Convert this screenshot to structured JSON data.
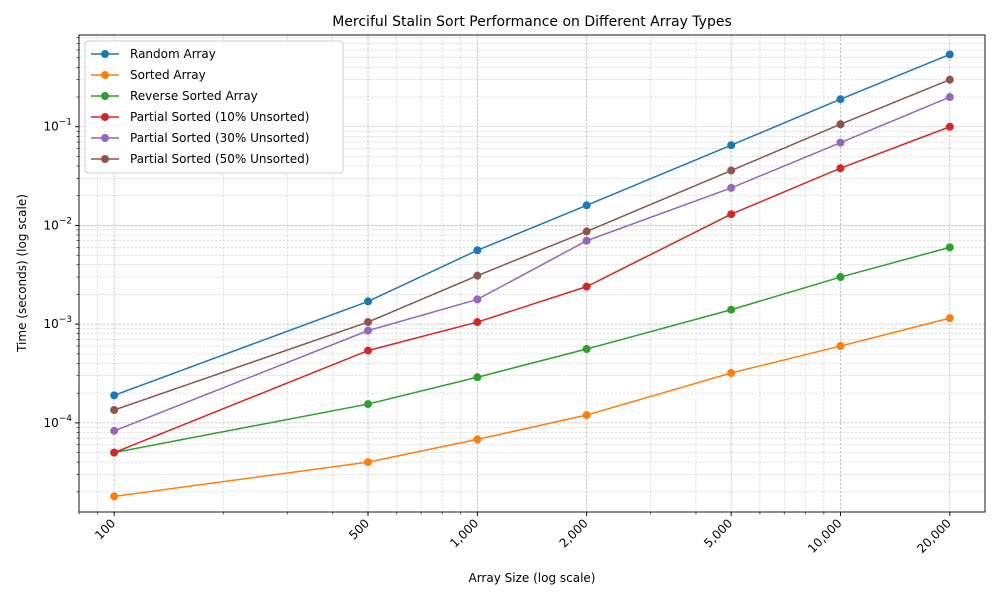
{
  "chart_data": {
    "type": "line",
    "title": "Merciful Stalin Sort Performance on Different Array Types",
    "xlabel": "Array Size (log scale)",
    "ylabel": "Time (seconds) (log scale)",
    "xscale": "log",
    "yscale": "log",
    "xlim": [
      80,
      25000
    ],
    "ylim": [
      1.25e-05,
      0.85
    ],
    "grid": "both (major and minor), dashed",
    "legend_position": "top-left",
    "x": [
      100,
      500,
      1000,
      2000,
      5000,
      10000,
      20000
    ],
    "x_tick_labels": [
      "100",
      "500",
      "1,000",
      "2,000",
      "5,000",
      "10,000",
      "20,000"
    ],
    "y_ticks": [
      {
        "value": 0.0001,
        "base": "10",
        "exp": "−4"
      },
      {
        "value": 0.001,
        "base": "10",
        "exp": "−3"
      },
      {
        "value": 0.01,
        "base": "10",
        "exp": "−2"
      },
      {
        "value": 0.1,
        "base": "10",
        "exp": "−1"
      }
    ],
    "series": [
      {
        "name": "Random Array",
        "color": "#1f77b4",
        "values": [
          0.00019,
          0.0017,
          0.0056,
          0.016,
          0.065,
          0.19,
          0.54
        ]
      },
      {
        "name": "Sorted Array",
        "color": "#ff7f0e",
        "values": [
          1.8e-05,
          4e-05,
          6.8e-05,
          0.00012,
          0.00032,
          0.0006,
          0.00115
        ]
      },
      {
        "name": "Reverse Sorted Array",
        "color": "#2ca02c",
        "values": [
          5e-05,
          0.000155,
          0.00029,
          0.00056,
          0.0014,
          0.003,
          0.006
        ]
      },
      {
        "name": "Partial Sorted (10% Unsorted)",
        "color": "#d62728",
        "values": [
          5e-05,
          0.00054,
          0.00105,
          0.0024,
          0.013,
          0.038,
          0.1
        ]
      },
      {
        "name": "Partial Sorted (30% Unsorted)",
        "color": "#9467bd",
        "values": [
          8.3e-05,
          0.00086,
          0.00178,
          0.007,
          0.024,
          0.069,
          0.2
        ]
      },
      {
        "name": "Partial Sorted (50% Unsorted)",
        "color": "#8c564b",
        "values": [
          0.000135,
          0.00105,
          0.0031,
          0.0087,
          0.036,
          0.106,
          0.3
        ]
      }
    ]
  }
}
